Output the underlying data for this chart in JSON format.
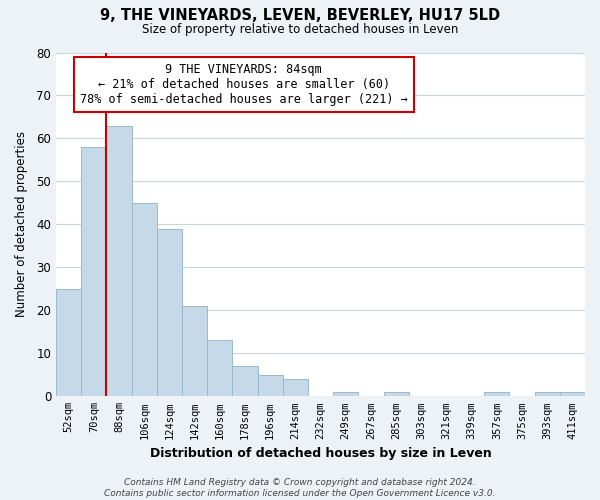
{
  "title": "9, THE VINEYARDS, LEVEN, BEVERLEY, HU17 5LD",
  "subtitle": "Size of property relative to detached houses in Leven",
  "xlabel": "Distribution of detached houses by size in Leven",
  "ylabel": "Number of detached properties",
  "bar_labels": [
    "52sqm",
    "70sqm",
    "88sqm",
    "106sqm",
    "124sqm",
    "142sqm",
    "160sqm",
    "178sqm",
    "196sqm",
    "214sqm",
    "232sqm",
    "249sqm",
    "267sqm",
    "285sqm",
    "303sqm",
    "321sqm",
    "339sqm",
    "357sqm",
    "375sqm",
    "393sqm",
    "411sqm"
  ],
  "bar_values": [
    25,
    58,
    63,
    45,
    39,
    21,
    13,
    7,
    5,
    4,
    0,
    1,
    0,
    1,
    0,
    0,
    0,
    1,
    0,
    1,
    1
  ],
  "bar_color": "#c6d9e8",
  "bar_edge_color": "#9ab8cc",
  "property_line_index": 2,
  "property_line_color": "#cc0000",
  "annotation_text": "9 THE VINEYARDS: 84sqm\n← 21% of detached houses are smaller (60)\n78% of semi-detached houses are larger (221) →",
  "annotation_box_color": "white",
  "annotation_box_edge": "#cc0000",
  "ylim": [
    0,
    80
  ],
  "yticks": [
    0,
    10,
    20,
    30,
    40,
    50,
    60,
    70,
    80
  ],
  "footer": "Contains HM Land Registry data © Crown copyright and database right 2024.\nContains public sector information licensed under the Open Government Licence v3.0.",
  "background_color": "#edf2f7",
  "plot_background_color": "white",
  "grid_color": "#c8d4de"
}
